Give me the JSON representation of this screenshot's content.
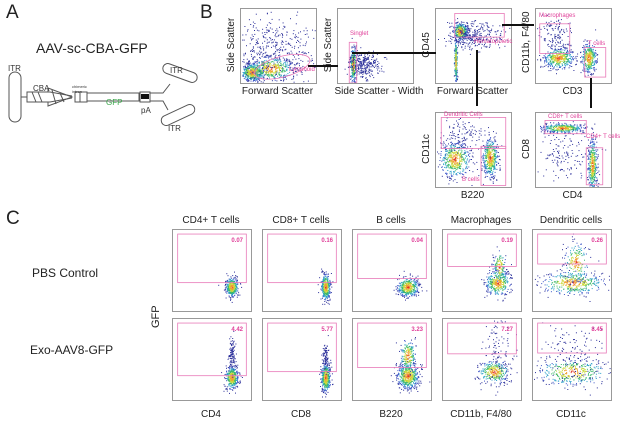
{
  "panel_letters": {
    "a": "A",
    "b": "B",
    "c": "C"
  },
  "panel_a": {
    "title": "AAV-sc-CBA-GFP",
    "labels": {
      "itr_left": "ITR",
      "itr_top": "ITR",
      "itr_bottom": "ITR",
      "cba": "CBA",
      "intron": "chimeric intron",
      "gfp": "GFP",
      "pa": "pA"
    },
    "colors": {
      "gfp": "#3aa64a"
    }
  },
  "panel_b": {
    "plots": [
      {
        "id": "fsc-ssc",
        "ylabel": "Side Scatter",
        "xlabel": "Forward Scatter",
        "gates": [
          "Lymphoid"
        ]
      },
      {
        "id": "singlet",
        "ylabel": "Side Scatter",
        "xlabel": "Side Scatter - Width",
        "gates": [
          "Singlet"
        ]
      },
      {
        "id": "cd45",
        "ylabel": "CD45",
        "xlabel": "Forward Scatter",
        "gates": [
          "Hematopoietic"
        ]
      },
      {
        "id": "cd11b-cd3",
        "ylabel": "CD11b, F4/80",
        "xlabel": "CD3",
        "gates": [
          "Macrophages",
          "T cells"
        ]
      },
      {
        "id": "cd11c-b220",
        "ylabel": "CD11c",
        "xlabel": "B220",
        "gates": [
          "Dendritic Cells",
          "B cells"
        ]
      },
      {
        "id": "cd8-cd4",
        "ylabel": "CD8",
        "xlabel": "CD4",
        "gates": [
          "CD8+ T cells",
          "CD4+ T cells"
        ]
      }
    ],
    "gate_color": "#e0409a"
  },
  "panel_c": {
    "y_axis_label": "GFP",
    "rows": [
      "PBS Control",
      "Exo-AAV8-GFP"
    ],
    "columns": [
      {
        "title": "CD4+ T cells",
        "xlabel": "CD4",
        "pbs_pct": "0.07",
        "exo_pct": "4.42"
      },
      {
        "title": "CD8+ T cells",
        "xlabel": "CD8",
        "pbs_pct": "0.16",
        "exo_pct": "5.77"
      },
      {
        "title": "B cells",
        "xlabel": "B220",
        "pbs_pct": "0.04",
        "exo_pct": "3.23"
      },
      {
        "title": "Macrophages",
        "xlabel": "CD11b, F4/80",
        "pbs_pct": "0.19",
        "exo_pct": "7.27"
      },
      {
        "title": "Dendritic cells",
        "xlabel": "CD11c",
        "pbs_pct": "0.26",
        "exo_pct": "8.45"
      }
    ]
  }
}
